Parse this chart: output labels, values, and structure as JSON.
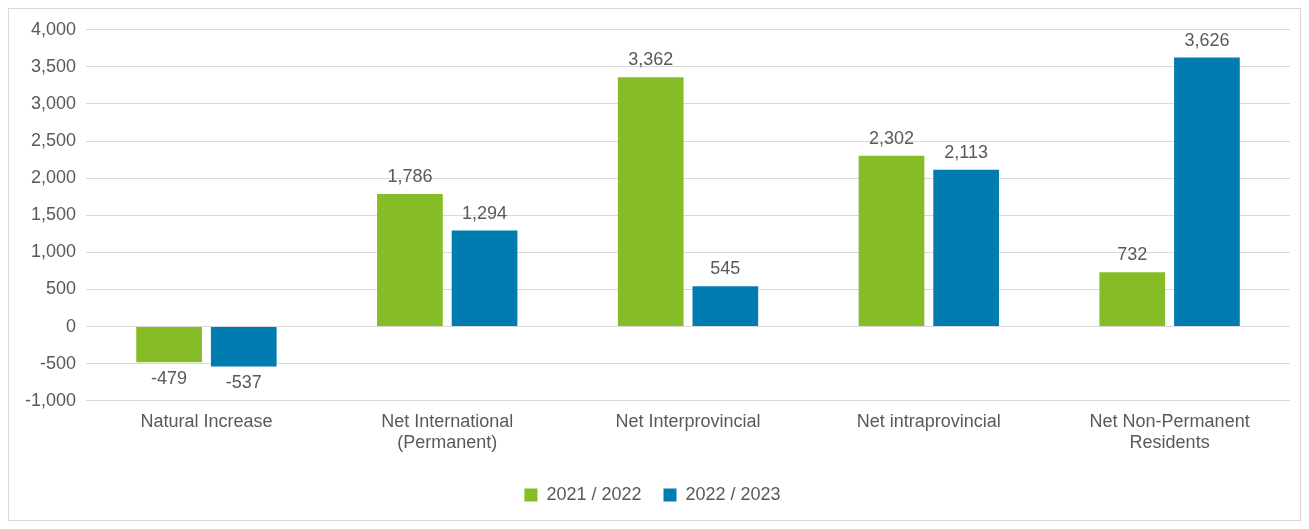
{
  "chart_data": {
    "type": "bar",
    "categories": [
      "Natural Increase",
      "Net International (Permanent)",
      "Net Interprovincial",
      "Net intraprovincial",
      "Net Non-Permanent Residents"
    ],
    "series": [
      {
        "name": "2021 / 2022",
        "color": "#86bc25",
        "values": [
          -479,
          1786,
          3362,
          2302,
          732
        ],
        "value_labels": [
          "-479",
          "1,786",
          "3,362",
          "2,302",
          "732"
        ]
      },
      {
        "name": "2022 / 2023",
        "color": "#007cb0",
        "values": [
          -537,
          1294,
          545,
          2113,
          3626
        ],
        "value_labels": [
          "-537",
          "1,294",
          "545",
          "2,113",
          "3,626"
        ]
      }
    ],
    "ylim": [
      -1000,
      4000
    ],
    "yticks": [
      {
        "value": -1000,
        "label": "-1,000"
      },
      {
        "value": -500,
        "label": "-500"
      },
      {
        "value": 0,
        "label": "0"
      },
      {
        "value": 500,
        "label": "500"
      },
      {
        "value": 1000,
        "label": "1,000"
      },
      {
        "value": 1500,
        "label": "1,500"
      },
      {
        "value": 2000,
        "label": "2,000"
      },
      {
        "value": 2500,
        "label": "2,500"
      },
      {
        "value": 3000,
        "label": "3,000"
      },
      {
        "value": 3500,
        "label": "3,500"
      },
      {
        "value": 4000,
        "label": "4,000"
      }
    ],
    "grid": "y",
    "legend": "bottom"
  }
}
